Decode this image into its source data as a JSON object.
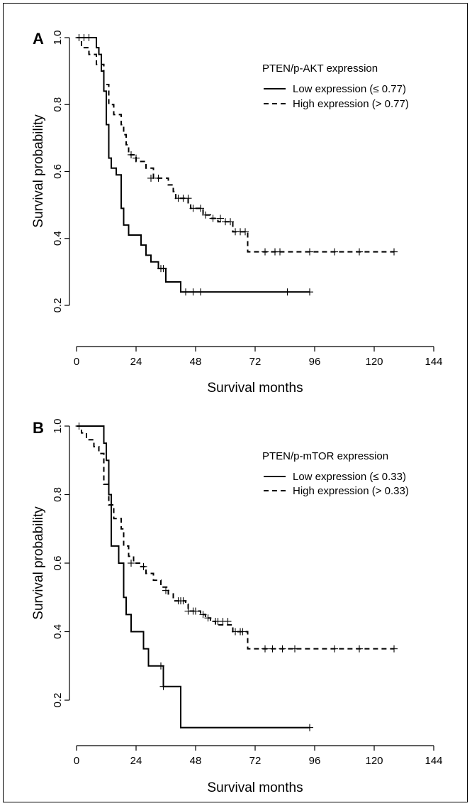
{
  "chart_data": [
    {
      "type": "line",
      "panel": "A",
      "xlabel": "Survival months",
      "ylabel": "Survival probability",
      "xlim": [
        0,
        144
      ],
      "ylim": [
        0.1,
        1.0
      ],
      "xticks": [
        0,
        24,
        48,
        72,
        96,
        120,
        144
      ],
      "yticks": [
        0.2,
        0.4,
        0.6,
        0.8,
        1.0
      ],
      "xtick_labels": [
        "0",
        "24",
        "48",
        "72",
        "96",
        "120",
        "144"
      ],
      "ytick_labels": [
        "0.2",
        "0.4",
        "0.6",
        "0.8",
        "1.0"
      ],
      "legend_title": "PTEN/p-AKT expression",
      "legend_position": "top-right",
      "grid": false,
      "series": [
        {
          "name": "Low expression (≤ 0.77)",
          "style": "solid",
          "steps": [
            [
              0,
              1.0
            ],
            [
              8,
              0.97
            ],
            [
              9,
              0.95
            ],
            [
              10,
              0.9
            ],
            [
              11,
              0.84
            ],
            [
              12,
              0.74
            ],
            [
              13,
              0.64
            ],
            [
              14,
              0.61
            ],
            [
              16,
              0.59
            ],
            [
              18,
              0.49
            ],
            [
              19,
              0.44
            ],
            [
              21,
              0.41
            ],
            [
              26,
              0.38
            ],
            [
              28,
              0.35
            ],
            [
              30,
              0.33
            ],
            [
              33,
              0.31
            ],
            [
              36,
              0.27
            ],
            [
              42,
              0.24
            ],
            [
              94,
              0.24
            ]
          ],
          "censors": [
            [
              1,
              1.0
            ],
            [
              3,
              1.0
            ],
            [
              5,
              1.0
            ],
            [
              34,
              0.31
            ],
            [
              35,
              0.31
            ],
            [
              44,
              0.24
            ],
            [
              47,
              0.24
            ],
            [
              50,
              0.24
            ],
            [
              85,
              0.24
            ],
            [
              94,
              0.24
            ]
          ]
        },
        {
          "name": "High expression (> 0.77)",
          "style": "dashed",
          "steps": [
            [
              0,
              1.0
            ],
            [
              2,
              0.97
            ],
            [
              5,
              0.95
            ],
            [
              8,
              0.92
            ],
            [
              11,
              0.86
            ],
            [
              13,
              0.8
            ],
            [
              15,
              0.77
            ],
            [
              18,
              0.74
            ],
            [
              19,
              0.71
            ],
            [
              20,
              0.68
            ],
            [
              21,
              0.65
            ],
            [
              24,
              0.63
            ],
            [
              28,
              0.61
            ],
            [
              31,
              0.58
            ],
            [
              37,
              0.56
            ],
            [
              39,
              0.54
            ],
            [
              40,
              0.52
            ],
            [
              45,
              0.5
            ],
            [
              46,
              0.49
            ],
            [
              51,
              0.47
            ],
            [
              54,
              0.46
            ],
            [
              57,
              0.45
            ],
            [
              63,
              0.42
            ],
            [
              69,
              0.36
            ],
            [
              128,
              0.36
            ]
          ],
          "censors": [
            [
              1,
              1.0
            ],
            [
              22,
              0.65
            ],
            [
              24,
              0.64
            ],
            [
              30,
              0.58
            ],
            [
              33,
              0.58
            ],
            [
              41,
              0.52
            ],
            [
              43,
              0.52
            ],
            [
              45,
              0.52
            ],
            [
              47,
              0.49
            ],
            [
              50,
              0.49
            ],
            [
              52,
              0.47
            ],
            [
              55,
              0.46
            ],
            [
              58,
              0.46
            ],
            [
              60,
              0.45
            ],
            [
              62,
              0.45
            ],
            [
              64,
              0.42
            ],
            [
              66,
              0.42
            ],
            [
              68,
              0.42
            ],
            [
              76,
              0.36
            ],
            [
              80,
              0.36
            ],
            [
              82,
              0.36
            ],
            [
              94,
              0.36
            ],
            [
              104,
              0.36
            ],
            [
              114,
              0.36
            ],
            [
              128,
              0.36
            ]
          ]
        }
      ]
    },
    {
      "type": "line",
      "panel": "B",
      "xlabel": "Survival months",
      "ylabel": "Survival probability",
      "xlim": [
        0,
        144
      ],
      "ylim": [
        0.1,
        1.0
      ],
      "xticks": [
        0,
        24,
        48,
        72,
        96,
        120,
        144
      ],
      "yticks": [
        0.2,
        0.4,
        0.6,
        0.8,
        1.0
      ],
      "xtick_labels": [
        "0",
        "24",
        "48",
        "72",
        "96",
        "120",
        "144"
      ],
      "ytick_labels": [
        "0.2",
        "0.4",
        "0.6",
        "0.8",
        "1.0"
      ],
      "legend_title": "PTEN/p-mTOR expression",
      "legend_position": "top-right",
      "grid": false,
      "series": [
        {
          "name": "Low expression (≤ 0.33)",
          "style": "solid",
          "steps": [
            [
              0,
              1.0
            ],
            [
              11,
              0.95
            ],
            [
              12,
              0.9
            ],
            [
              13,
              0.8
            ],
            [
              14,
              0.65
            ],
            [
              17,
              0.6
            ],
            [
              19,
              0.5
            ],
            [
              20,
              0.45
            ],
            [
              22,
              0.4
            ],
            [
              27,
              0.35
            ],
            [
              29,
              0.3
            ],
            [
              35,
              0.24
            ],
            [
              42,
              0.12
            ],
            [
              94,
              0.12
            ]
          ],
          "censors": [
            [
              34,
              0.3
            ],
            [
              35,
              0.24
            ],
            [
              94,
              0.12
            ]
          ]
        },
        {
          "name": "High expression (> 0.33)",
          "style": "dashed",
          "steps": [
            [
              0,
              1.0
            ],
            [
              2,
              0.98
            ],
            [
              4,
              0.96
            ],
            [
              7,
              0.94
            ],
            [
              9,
              0.92
            ],
            [
              11,
              0.83
            ],
            [
              13,
              0.77
            ],
            [
              15,
              0.73
            ],
            [
              18,
              0.7
            ],
            [
              19,
              0.65
            ],
            [
              21,
              0.62
            ],
            [
              23,
              0.6
            ],
            [
              26,
              0.59
            ],
            [
              28,
              0.57
            ],
            [
              31,
              0.55
            ],
            [
              34,
              0.53
            ],
            [
              37,
              0.51
            ],
            [
              39,
              0.49
            ],
            [
              44,
              0.48
            ],
            [
              45,
              0.46
            ],
            [
              50,
              0.45
            ],
            [
              52,
              0.44
            ],
            [
              54,
              0.43
            ],
            [
              56,
              0.42
            ],
            [
              63,
              0.4
            ],
            [
              69,
              0.35
            ],
            [
              128,
              0.35
            ]
          ],
          "censors": [
            [
              1,
              1.0
            ],
            [
              22,
              0.6
            ],
            [
              27,
              0.59
            ],
            [
              36,
              0.52
            ],
            [
              41,
              0.49
            ],
            [
              42,
              0.49
            ],
            [
              43,
              0.49
            ],
            [
              45,
              0.46
            ],
            [
              47,
              0.46
            ],
            [
              48,
              0.46
            ],
            [
              51,
              0.45
            ],
            [
              53,
              0.44
            ],
            [
              56,
              0.43
            ],
            [
              57,
              0.43
            ],
            [
              59,
              0.43
            ],
            [
              61,
              0.43
            ],
            [
              64,
              0.4
            ],
            [
              66,
              0.4
            ],
            [
              67,
              0.4
            ],
            [
              76,
              0.35
            ],
            [
              79,
              0.35
            ],
            [
              83,
              0.35
            ],
            [
              88,
              0.35
            ],
            [
              104,
              0.35
            ],
            [
              114,
              0.35
            ],
            [
              128,
              0.35
            ]
          ]
        }
      ]
    }
  ]
}
